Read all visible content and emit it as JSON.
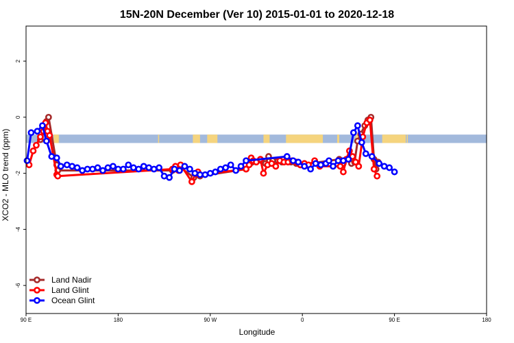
{
  "chart_data": {
    "type": "line",
    "title": "15N-20N December (Ver 10)   2015-01-01 to 2020-12-18",
    "xlabel": "Longitude",
    "ylabel": "XCO2 - MLO trend (ppm)",
    "xlim": [
      90,
      450
    ],
    "ylim": [
      -7.0,
      3.25
    ],
    "x_ticks": [
      {
        "value": 90,
        "label": "90 E"
      },
      {
        "value": 180,
        "label": "180"
      },
      {
        "value": 270,
        "label": "90 W"
      },
      {
        "value": 360,
        "label": "0"
      },
      {
        "value": 450,
        "label": "90 E"
      },
      {
        "value": 540,
        "label": "180"
      }
    ],
    "y_ticks": [
      {
        "value": 2,
        "label": "2"
      },
      {
        "value": 0,
        "label": "0"
      },
      {
        "value": -2,
        "label": "-2"
      },
      {
        "value": -4,
        "label": "-4"
      },
      {
        "value": -6,
        "label": "-6"
      }
    ],
    "x_domain": [
      90,
      540
    ],
    "land_band": {
      "y_top": -0.62,
      "y_bottom": -0.92,
      "ocean_color": "#a2b9dc",
      "land_color": "#f5d47e"
    },
    "land_segments": [
      [
        101,
        105
      ],
      [
        117,
        122
      ],
      [
        219,
        220
      ],
      [
        253,
        260
      ],
      [
        267,
        277
      ],
      [
        322,
        328
      ],
      [
        344,
        380
      ],
      [
        394,
        396
      ],
      [
        412,
        418
      ],
      [
        438,
        461
      ],
      [
        462,
        463
      ],
      [
        568,
        569
      ]
    ],
    "legend": {
      "position": "bottom-left"
    },
    "series": [
      {
        "name": "Land Nadir",
        "color": "#a52a2a",
        "points": [
          [
            104,
            -0.8
          ],
          [
            108,
            -0.5
          ],
          [
            110,
            -0.15
          ],
          [
            112,
            0.0
          ],
          [
            120,
            -1.7
          ],
          [
            121,
            -1.9
          ],
          [
            233,
            -1.9
          ],
          [
            237,
            -1.8
          ],
          [
            241,
            -1.8
          ],
          [
            254,
            -2.15
          ],
          [
            257,
            -2.05
          ],
          [
            260,
            -2.1
          ],
          [
            305,
            -1.85
          ],
          [
            309,
            -1.65
          ],
          [
            311,
            -1.6
          ],
          [
            320,
            -1.55
          ],
          [
            324,
            -1.65
          ],
          [
            327,
            -1.4
          ],
          [
            331,
            -1.55
          ],
          [
            336,
            -1.55
          ],
          [
            340,
            -1.6
          ],
          [
            345,
            -1.5
          ],
          [
            349,
            -1.6
          ],
          [
            354,
            -1.65
          ],
          [
            358,
            -1.7
          ],
          [
            396,
            -1.5
          ],
          [
            400,
            -1.65
          ],
          [
            405,
            -1.5
          ],
          [
            408,
            -1.65
          ],
          [
            411,
            -1.6
          ],
          [
            414,
            -0.85
          ],
          [
            417,
            -0.6
          ],
          [
            421,
            -0.3
          ],
          [
            424,
            -0.1
          ],
          [
            427,
            0.0
          ],
          [
            430,
            -1.5
          ],
          [
            432,
            -1.85
          ],
          [
            434,
            -1.6
          ]
        ]
      },
      {
        "name": "Land Glint",
        "color": "#ff0000",
        "points": [
          [
            93,
            -1.7
          ],
          [
            97,
            -1.2
          ],
          [
            100,
            -1.0
          ],
          [
            104,
            -0.7
          ],
          [
            107,
            -0.5
          ],
          [
            109,
            -0.2
          ],
          [
            111,
            -0.5
          ],
          [
            113,
            -0.65
          ],
          [
            120,
            -2.05
          ],
          [
            121,
            -2.1
          ],
          [
            233,
            -1.85
          ],
          [
            236,
            -1.75
          ],
          [
            239,
            -1.9
          ],
          [
            241,
            -1.7
          ],
          [
            252,
            -2.3
          ],
          [
            256,
            -2.0
          ],
          [
            258,
            -1.95
          ],
          [
            259,
            -2.05
          ],
          [
            305,
            -1.85
          ],
          [
            308,
            -1.7
          ],
          [
            310,
            -1.45
          ],
          [
            312,
            -1.55
          ],
          [
            315,
            -1.6
          ],
          [
            319,
            -1.5
          ],
          [
            322,
            -2.0
          ],
          [
            326,
            -1.7
          ],
          [
            330,
            -1.65
          ],
          [
            334,
            -1.75
          ],
          [
            338,
            -1.55
          ],
          [
            342,
            -1.6
          ],
          [
            346,
            -1.6
          ],
          [
            350,
            -1.55
          ],
          [
            354,
            -1.6
          ],
          [
            358,
            -1.7
          ],
          [
            362,
            -1.65
          ],
          [
            366,
            -1.7
          ],
          [
            372,
            -1.55
          ],
          [
            377,
            -1.75
          ],
          [
            397,
            -1.75
          ],
          [
            400,
            -1.95
          ],
          [
            403,
            -1.5
          ],
          [
            406,
            -1.2
          ],
          [
            409,
            -1.4
          ],
          [
            412,
            -1.6
          ],
          [
            415,
            -1.75
          ],
          [
            419,
            -0.7
          ],
          [
            423,
            -0.2
          ],
          [
            426,
            -0.1
          ],
          [
            430,
            -1.85
          ],
          [
            433,
            -2.1
          ]
        ]
      },
      {
        "name": "Ocean Glint",
        "color": "#0000ff",
        "points": [
          [
            91,
            -1.55
          ],
          [
            95,
            -0.55
          ],
          [
            101,
            -0.5
          ],
          [
            106,
            -0.3
          ],
          [
            110,
            -0.85
          ],
          [
            115,
            -1.4
          ],
          [
            120,
            -1.45
          ],
          [
            124,
            -1.75
          ],
          [
            130,
            -1.7
          ],
          [
            135,
            -1.75
          ],
          [
            140,
            -1.8
          ],
          [
            145,
            -1.9
          ],
          [
            150,
            -1.85
          ],
          [
            155,
            -1.85
          ],
          [
            160,
            -1.8
          ],
          [
            165,
            -1.9
          ],
          [
            170,
            -1.8
          ],
          [
            175,
            -1.75
          ],
          [
            180,
            -1.85
          ],
          [
            185,
            -1.85
          ],
          [
            190,
            -1.7
          ],
          [
            195,
            -1.8
          ],
          [
            200,
            -1.85
          ],
          [
            205,
            -1.75
          ],
          [
            210,
            -1.8
          ],
          [
            215,
            -1.85
          ],
          [
            220,
            -1.8
          ],
          [
            225,
            -2.1
          ],
          [
            230,
            -2.15
          ],
          [
            235,
            -1.85
          ],
          [
            240,
            -1.9
          ],
          [
            245,
            -1.75
          ],
          [
            250,
            -1.85
          ],
          [
            255,
            -2.0
          ],
          [
            260,
            -2.05
          ],
          [
            265,
            -2.05
          ],
          [
            270,
            -2.0
          ],
          [
            275,
            -1.95
          ],
          [
            280,
            -1.85
          ],
          [
            285,
            -1.8
          ],
          [
            290,
            -1.7
          ],
          [
            295,
            -1.9
          ],
          [
            300,
            -1.75
          ],
          [
            305,
            -1.55
          ],
          [
            345,
            -1.4
          ],
          [
            351,
            -1.55
          ],
          [
            356,
            -1.6
          ],
          [
            362,
            -1.75
          ],
          [
            368,
            -1.85
          ],
          [
            373,
            -1.65
          ],
          [
            378,
            -1.7
          ],
          [
            383,
            -1.65
          ],
          [
            386,
            -1.55
          ],
          [
            390,
            -1.75
          ],
          [
            395,
            -1.55
          ],
          [
            400,
            -1.55
          ],
          [
            405,
            -1.5
          ],
          [
            410,
            -0.55
          ],
          [
            414,
            -0.3
          ],
          [
            418,
            -0.9
          ],
          [
            422,
            -1.3
          ],
          [
            428,
            -1.4
          ],
          [
            435,
            -1.65
          ],
          [
            440,
            -1.75
          ],
          [
            445,
            -1.8
          ],
          [
            450,
            -1.95
          ]
        ]
      }
    ]
  }
}
